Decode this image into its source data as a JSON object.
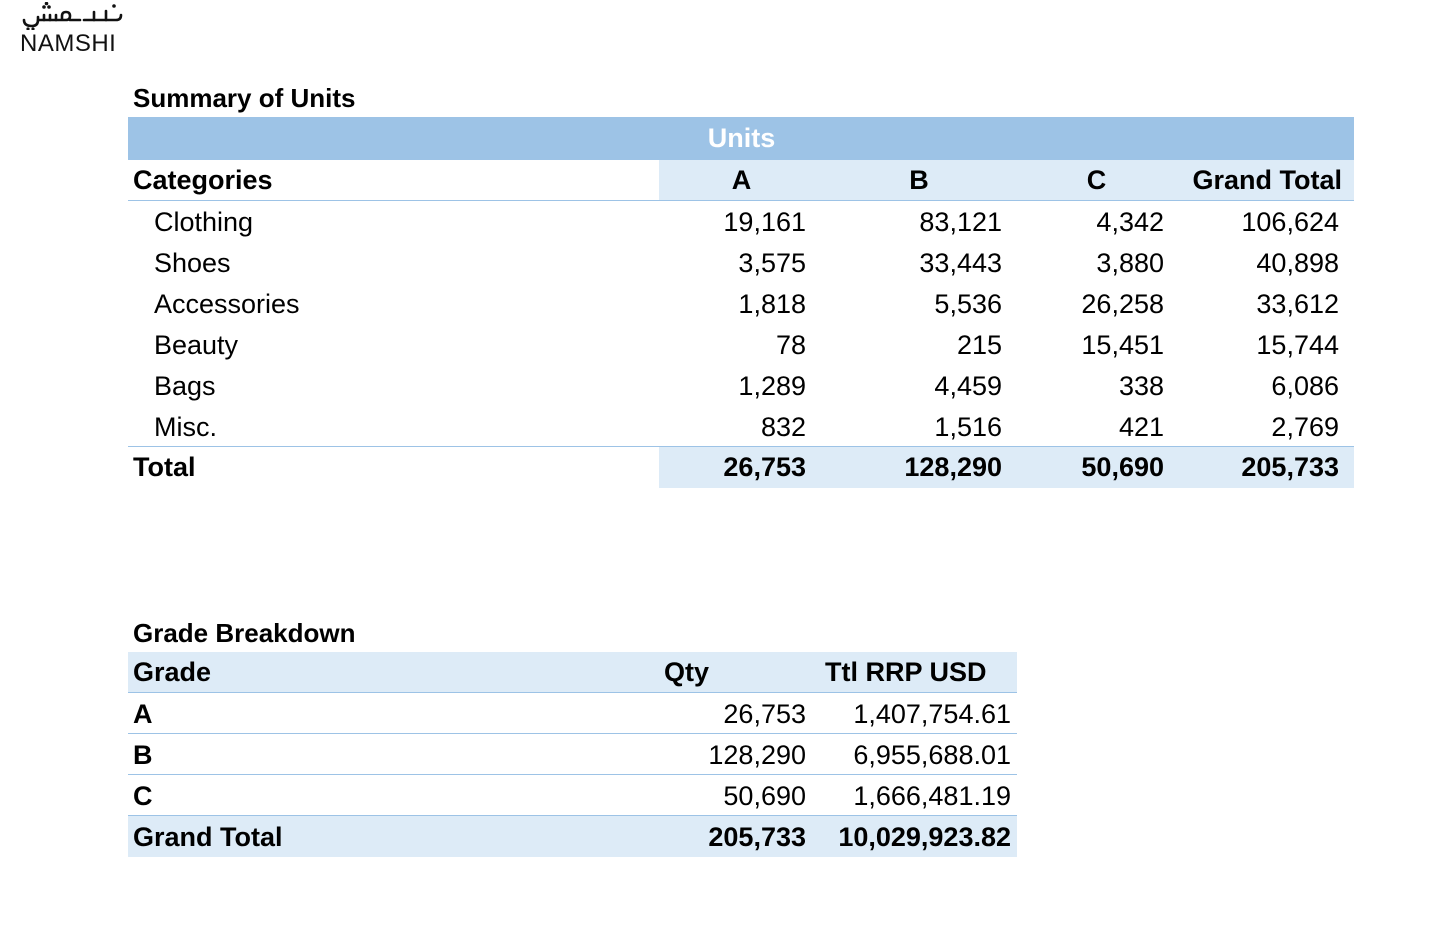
{
  "logo": {
    "arabic_text": "نمشي",
    "latin_text": "NAMSHI"
  },
  "summary": {
    "title": "Summary of Units",
    "group_header": "Units",
    "headers": {
      "category": "Categories",
      "a": "A",
      "b": "B",
      "c": "C",
      "total": "Grand Total"
    },
    "rows": [
      {
        "category": "Clothing",
        "a": "19,161",
        "b": "83,121",
        "c": "4,342",
        "total": "106,624"
      },
      {
        "category": "Shoes",
        "a": "3,575",
        "b": "33,443",
        "c": "3,880",
        "total": "40,898"
      },
      {
        "category": "Accessories",
        "a": "1,818",
        "b": "5,536",
        "c": "26,258",
        "total": "33,612"
      },
      {
        "category": "Beauty",
        "a": "78",
        "b": "215",
        "c": "15,451",
        "total": "15,744"
      },
      {
        "category": "Bags",
        "a": "1,289",
        "b": "4,459",
        "c": "338",
        "total": "6,086"
      },
      {
        "category": "Misc.",
        "a": "832",
        "b": "1,516",
        "c": "421",
        "total": "2,769"
      }
    ],
    "total_row": {
      "category": "Total",
      "a": "26,753",
      "b": "128,290",
      "c": "50,690",
      "total": "205,733"
    }
  },
  "grade": {
    "title": "Grade Breakdown",
    "headers": {
      "grade": "Grade",
      "qty": "Qty",
      "rrp": "Ttl RRP USD"
    },
    "rows": [
      {
        "grade": "A",
        "qty": "26,753",
        "rrp": "1,407,754.61"
      },
      {
        "grade": "B",
        "qty": "128,290",
        "rrp": "6,955,688.01"
      },
      {
        "grade": "C",
        "qty": "50,690",
        "rrp": "1,666,481.19"
      }
    ],
    "total_row": {
      "grade": "Grand Total",
      "qty": "205,733",
      "rrp": "10,029,923.82"
    }
  },
  "colors": {
    "header_dark": "#9dc3e6",
    "header_light": "#ddebf7",
    "border": "#9dc3e6"
  }
}
